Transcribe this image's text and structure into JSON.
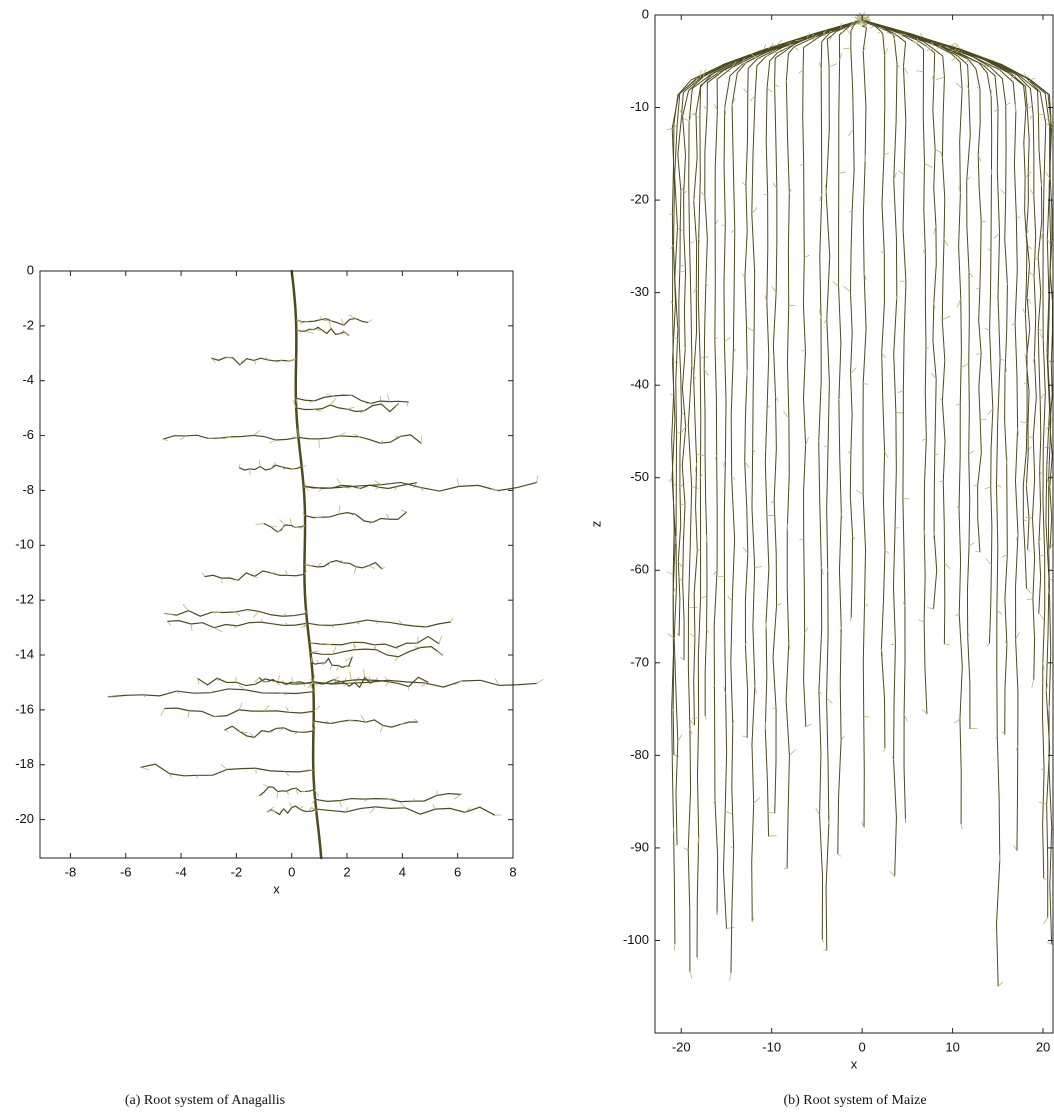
{
  "figure": {
    "panels": [
      {
        "caption": "(a)  Root system of Anagallis",
        "xlabel": "x",
        "xlim": [
          -9.1,
          8
        ],
        "xticks": [
          -8,
          -6,
          -4,
          -2,
          0,
          2,
          4,
          6,
          8
        ],
        "ylim": [
          -21.4,
          0
        ],
        "yticks": [
          0,
          -2,
          -4,
          -6,
          -8,
          -10,
          -12,
          -14,
          -16,
          -18,
          -20
        ]
      },
      {
        "caption": "(b)  Root system of Maize",
        "xlabel": "x",
        "ylabel": "z",
        "xlim": [
          -22.9,
          21.1
        ],
        "xticks": [
          -20,
          -10,
          0,
          10,
          20
        ],
        "ylim": [
          -110,
          0
        ],
        "yticks": [
          0,
          -10,
          -20,
          -30,
          -40,
          -50,
          -60,
          -70,
          -80,
          -90,
          -100
        ]
      }
    ]
  }
}
